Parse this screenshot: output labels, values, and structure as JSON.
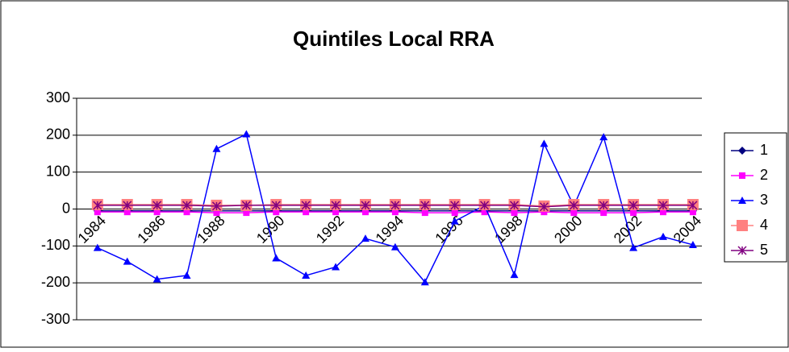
{
  "chart_data": {
    "type": "line",
    "title": "Quintiles Local RRA",
    "categories": [
      "1984",
      null,
      "1986",
      null,
      "1988",
      null,
      "1990",
      null,
      "1992",
      null,
      "1994",
      null,
      "1996",
      null,
      "1998",
      null,
      "2000",
      null,
      "2002",
      null,
      "2004"
    ],
    "series": [
      {
        "name": "1",
        "color": "#000080",
        "marker": "diamond",
        "values": [
          -5,
          -5,
          -5,
          -5,
          -5,
          -5,
          -5,
          -5,
          -5,
          -5,
          -5,
          -5,
          -5,
          -5,
          -5,
          -5,
          -5,
          -5,
          -5,
          -5,
          -5
        ]
      },
      {
        "name": "2",
        "color": "#ff00ff",
        "marker": "square",
        "values": [
          -8,
          -8,
          -8,
          -8,
          -10,
          -10,
          -8,
          -8,
          -8,
          -8,
          -8,
          -10,
          -10,
          -8,
          -10,
          -8,
          -10,
          -10,
          -10,
          -8,
          -8
        ]
      },
      {
        "name": "3",
        "color": "#0000ff",
        "marker": "triangle",
        "values": [
          -105,
          -142,
          -190,
          -180,
          163,
          203,
          -133,
          -180,
          -157,
          -80,
          -103,
          -198,
          -33,
          10,
          -178,
          177,
          8,
          195,
          -105,
          -75,
          -97
        ]
      },
      {
        "name": "4",
        "color": "#ff8080",
        "marker": "bigsquare",
        "values": [
          12,
          12,
          12,
          12,
          10,
          10,
          12,
          12,
          12,
          12,
          12,
          12,
          12,
          12,
          12,
          8,
          12,
          12,
          12,
          12,
          12
        ]
      },
      {
        "name": "5",
        "color": "#800080",
        "marker": "star",
        "values": [
          10,
          10,
          10,
          10,
          8,
          10,
          10,
          10,
          10,
          10,
          10,
          10,
          10,
          10,
          10,
          6,
          10,
          10,
          10,
          10,
          10
        ]
      }
    ],
    "ylim": [
      -300,
      300
    ],
    "yticks": [
      -300,
      -200,
      -100,
      0,
      100,
      200,
      300
    ],
    "grid": true,
    "legend": "right"
  }
}
